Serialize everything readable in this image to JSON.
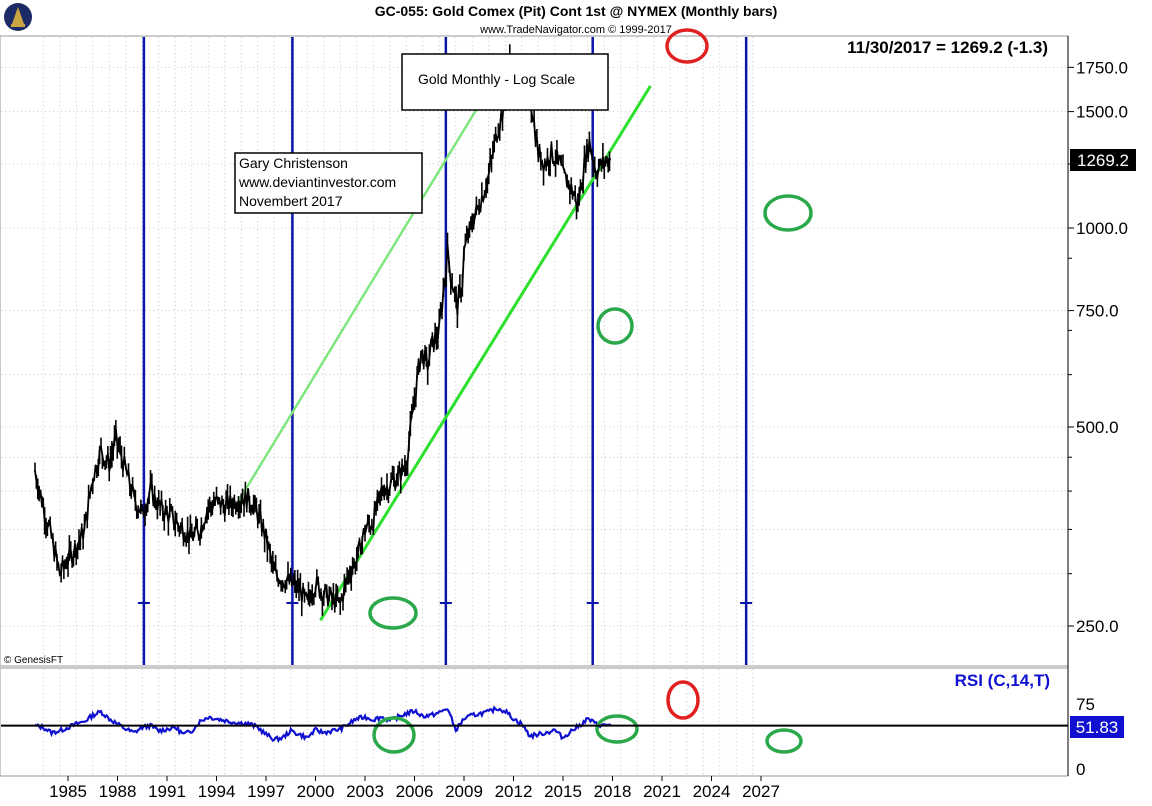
{
  "header": {
    "title": "GC-055:  Gold Comex (Pit) Cont 1st @ NYMEX  (Monthly bars)",
    "source": "www.TradeNavigator.com © 1999-2017",
    "last_value": "11/30/2017 = 1269.2 (-1.3)"
  },
  "annotations": {
    "scale_note": "Gold Monthly  - Log Scale",
    "author_lines": [
      "Gary Christenson",
      "www.deviantinvestor.com",
      "Novembert 2017"
    ],
    "copyright": "© GenesisFT"
  },
  "colors": {
    "price": "#000000",
    "rsi": "#1010d0",
    "cycle_lines": "#0a14a8",
    "trend_light": "#7fe67f",
    "trend_bright": "#2ee02e",
    "green_circles": "#2aa84a",
    "red_circles": "#e02020",
    "grid": "#b8b8b8"
  },
  "chart_data": [
    {
      "type": "line",
      "title": "GC-055:  Gold Comex (Pit) Cont 1st @ NYMEX  (Monthly bars)",
      "scale": "log",
      "xlim": [
        1983,
        2027
      ],
      "ylim": [
        225,
        1950
      ],
      "yticks": [
        250,
        500,
        750,
        1000,
        1500,
        1750
      ],
      "ytick_labels": [
        "250.0",
        "500.0",
        "750.0",
        "1000.0",
        "1500.0",
        "1750.0"
      ],
      "last_price_label": "1269.2",
      "grid": true,
      "series": [
        {
          "x": [
            1983.0,
            1983.5,
            1984.0,
            1984.5,
            1985.0,
            1985.5,
            1986.0,
            1986.5,
            1987.0,
            1987.5,
            1987.9,
            1988.5,
            1989.0,
            1989.5,
            1990.0,
            1990.5,
            1991.0,
            1991.5,
            1992.0,
            1992.5,
            1993.0,
            1993.5,
            1994.0,
            1994.5,
            1995.0,
            1995.5,
            1996.0,
            1996.5,
            1997.0,
            1997.5,
            1998.0,
            1998.5,
            1999.0,
            1999.5,
            1999.8,
            2000.0,
            2000.5,
            2001.0,
            2001.5,
            2002.0,
            2002.5,
            2003.0,
            2003.5,
            2004.0,
            2004.5,
            2005.0,
            2005.5,
            2006.0,
            2006.4,
            2006.8,
            2007.0,
            2007.5,
            2008.0,
            2008.2,
            2008.6,
            2008.9,
            2009.0,
            2009.5,
            2010.0,
            2010.5,
            2011.0,
            2011.5,
            2011.7,
            2012.0,
            2012.5,
            2013.0,
            2013.5,
            2013.9,
            2014.3,
            2014.8,
            2015.0,
            2015.5,
            2015.9,
            2016.3,
            2016.6,
            2017.0,
            2017.5,
            2017.9
          ],
          "values": [
            430,
            380,
            340,
            300,
            315,
            330,
            350,
            420,
            460,
            440,
            480,
            430,
            390,
            370,
            400,
            380,
            370,
            360,
            350,
            340,
            350,
            380,
            385,
            380,
            385,
            390,
            390,
            370,
            340,
            300,
            295,
            290,
            285,
            270,
            285,
            290,
            280,
            275,
            270,
            300,
            315,
            350,
            360,
            400,
            410,
            420,
            440,
            550,
            650,
            620,
            660,
            700,
            920,
            850,
            760,
            830,
            920,
            1020,
            1100,
            1200,
            1400,
            1550,
            1800,
            1700,
            1650,
            1600,
            1300,
            1250,
            1300,
            1250,
            1200,
            1150,
            1080,
            1250,
            1350,
            1220,
            1260,
            1270
          ]
        }
      ]
    },
    {
      "type": "line",
      "title": "RSI (C,14,T)",
      "xlim": [
        1983,
        2027
      ],
      "ylim": [
        0,
        100
      ],
      "yticks": [
        0,
        75
      ],
      "ytick_labels": [
        "0",
        "75"
      ],
      "last_value_label": "51.83",
      "x_ticks": [
        1985,
        1988,
        1991,
        1994,
        1997,
        2000,
        2003,
        2006,
        2009,
        2012,
        2015,
        2018,
        2021,
        2024,
        2027
      ],
      "x_tick_labels": [
        "1985",
        "1988",
        "1991",
        "1994",
        "1997",
        "2000",
        "2003",
        "2006",
        "2009",
        "2012",
        "2015",
        "2018",
        "2021",
        "2024",
        "2027"
      ],
      "reference_line": 50,
      "series": [
        {
          "x": [
            1983.0,
            1983.5,
            1984.0,
            1984.5,
            1985.0,
            1985.5,
            1986.0,
            1986.5,
            1987.0,
            1987.5,
            1988.0,
            1988.5,
            1989.0,
            1989.5,
            1990.0,
            1990.5,
            1991.0,
            1991.5,
            1992.0,
            1992.5,
            1993.0,
            1993.5,
            1994.0,
            1994.5,
            1995.0,
            1995.5,
            1996.0,
            1996.5,
            1997.0,
            1997.5,
            1998.0,
            1998.5,
            1999.0,
            1999.5,
            2000.0,
            2000.5,
            2001.0,
            2001.5,
            2002.0,
            2002.5,
            2003.0,
            2003.5,
            2004.0,
            2004.5,
            2005.0,
            2005.5,
            2006.0,
            2006.5,
            2007.0,
            2007.5,
            2008.0,
            2008.5,
            2009.0,
            2009.5,
            2010.0,
            2010.5,
            2011.0,
            2011.5,
            2012.0,
            2012.5,
            2013.0,
            2013.5,
            2014.0,
            2014.5,
            2015.0,
            2015.5,
            2016.0,
            2016.5,
            2017.0,
            2017.5,
            2017.9
          ],
          "values": [
            50,
            48,
            42,
            44,
            48,
            52,
            55,
            62,
            66,
            58,
            52,
            46,
            42,
            48,
            50,
            44,
            46,
            48,
            40,
            44,
            55,
            60,
            58,
            56,
            54,
            53,
            52,
            48,
            40,
            34,
            36,
            44,
            40,
            36,
            45,
            42,
            44,
            46,
            52,
            58,
            60,
            57,
            60,
            56,
            60,
            64,
            67,
            61,
            62,
            65,
            70,
            45,
            58,
            62,
            64,
            66,
            70,
            67,
            58,
            52,
            38,
            40,
            42,
            45,
            36,
            44,
            50,
            58,
            52,
            50,
            51.83
          ]
        }
      ]
    }
  ]
}
